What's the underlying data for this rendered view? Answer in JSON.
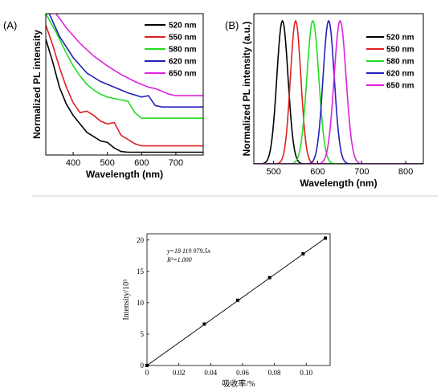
{
  "colors": {
    "520 nm": "#000000",
    "550 nm": "#e02020",
    "580 nm": "#22dd22",
    "620 nm": "#2222bb",
    "650 nm": "#dd22dd"
  },
  "chart_data": [
    {
      "id": "A",
      "type": "line",
      "panel_label": "(A)",
      "xlabel": "Wavelength (nm)",
      "ylabel": "Normalized PL intensity",
      "xlim": [
        320,
        780
      ],
      "ylim": [
        0,
        1
      ],
      "xticks": [
        400,
        500,
        600,
        700
      ],
      "legend_position": "top-right",
      "series": [
        {
          "name": "520 nm",
          "x": [
            320,
            340,
            360,
            380,
            400,
            420,
            440,
            460,
            480,
            500,
            520,
            540,
            560,
            600,
            700,
            780
          ],
          "y": [
            0.82,
            0.66,
            0.48,
            0.36,
            0.28,
            0.22,
            0.16,
            0.13,
            0.1,
            0.09,
            0.05,
            0.025,
            0.02,
            0.02,
            0.02,
            0.02
          ]
        },
        {
          "name": "550 nm",
          "x": [
            320,
            340,
            360,
            380,
            400,
            420,
            440,
            460,
            480,
            500,
            520,
            540,
            560,
            580,
            600,
            700,
            780
          ],
          "y": [
            0.92,
            0.78,
            0.62,
            0.48,
            0.37,
            0.3,
            0.31,
            0.28,
            0.24,
            0.22,
            0.23,
            0.14,
            0.11,
            0.08,
            0.065,
            0.065,
            0.065
          ]
        },
        {
          "name": "580 nm",
          "x": [
            320,
            350,
            380,
            400,
            420,
            440,
            460,
            480,
            500,
            520,
            540,
            560,
            580,
            600,
            650,
            700,
            780
          ],
          "y": [
            1.0,
            0.87,
            0.72,
            0.63,
            0.56,
            0.5,
            0.46,
            0.43,
            0.41,
            0.4,
            0.39,
            0.38,
            0.3,
            0.26,
            0.26,
            0.26,
            0.26
          ]
        },
        {
          "name": "620 nm",
          "x": [
            330,
            360,
            400,
            440,
            480,
            520,
            560,
            600,
            620,
            640,
            660,
            700,
            780
          ],
          "y": [
            1.0,
            0.84,
            0.69,
            0.58,
            0.52,
            0.48,
            0.44,
            0.41,
            0.42,
            0.35,
            0.34,
            0.34,
            0.34
          ]
        },
        {
          "name": "650 nm",
          "x": [
            350,
            380,
            420,
            460,
            500,
            540,
            580,
            620,
            640,
            660,
            680,
            700,
            780
          ],
          "y": [
            1.0,
            0.9,
            0.79,
            0.7,
            0.63,
            0.57,
            0.52,
            0.48,
            0.47,
            0.45,
            0.43,
            0.42,
            0.42
          ]
        }
      ]
    },
    {
      "id": "B",
      "type": "line",
      "panel_label": "(B)",
      "xlabel": "Wavelength (nm)",
      "ylabel": "Normalized PL intensity (a.u.)",
      "xlim": [
        455,
        840
      ],
      "ylim": [
        0,
        1.05
      ],
      "xticks": [
        500,
        600,
        700,
        800
      ],
      "legend_position": "top-right",
      "series": [
        {
          "name": "520 nm",
          "peak": 520,
          "fwhm": 30,
          "y_max": 1.0
        },
        {
          "name": "550 nm",
          "peak": 550,
          "fwhm": 28,
          "y_max": 1.0
        },
        {
          "name": "580 nm",
          "peak": 589,
          "fwhm": 32,
          "y_max": 1.0
        },
        {
          "name": "620 nm",
          "peak": 625,
          "fwhm": 30,
          "y_max": 1.0
        },
        {
          "name": "650 nm",
          "peak": 651,
          "fwhm": 32,
          "y_max": 1.0
        }
      ]
    },
    {
      "id": "C",
      "type": "scatter",
      "xlabel": "吸收率/%",
      "ylabel": "Intensity/10⁵",
      "xlim": [
        0,
        0.115
      ],
      "ylim": [
        0,
        21
      ],
      "xticks": [
        "0",
        "0.02",
        "0.04",
        "0.06",
        "0.08",
        "0.10"
      ],
      "yticks": [
        "0",
        "5",
        "10",
        "15",
        "20"
      ],
      "equation": "y=18 119 979.5x",
      "r_squared": "R²=1.000",
      "fit_line": true,
      "x": [
        0,
        0.036,
        0.057,
        0.077,
        0.098,
        0.112
      ],
      "y": [
        0,
        6.6,
        10.4,
        14.0,
        17.8,
        20.3
      ]
    }
  ]
}
